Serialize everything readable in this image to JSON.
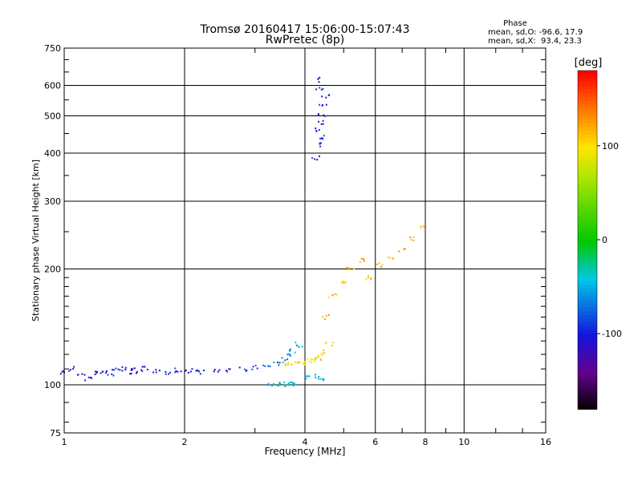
{
  "chart_data": {
    "type": "scatter",
    "title": "Tromsø 20160417 15:06:00-15:07:43",
    "subtitle": "RwPretec (8p)",
    "xlabel": "Frequency [MHz]",
    "ylabel": "Stationary phase Virtual Height [km]",
    "x_scale": "log",
    "y_scale": "log",
    "xlim": [
      1,
      16
    ],
    "ylim": [
      75,
      750
    ],
    "x_ticks": [
      1,
      2,
      4,
      6,
      8,
      10,
      16
    ],
    "x_tick_labels": [
      "1",
      "2",
      "4",
      "6",
      "8",
      "10",
      "16"
    ],
    "y_ticks": [
      75,
      100,
      200,
      300,
      400,
      500,
      600,
      750
    ],
    "y_tick_labels": [
      "75",
      "100",
      "200",
      "300",
      "400",
      "500",
      "600",
      "750"
    ],
    "grid": true,
    "phase_stats": {
      "title": "Phase",
      "line_o": "mean, sd,O: -96.6, 17.9",
      "line_x": "mean, sd,X:  93.4, 23.3"
    },
    "colorbar": {
      "label": "[deg]",
      "range": [
        -180,
        180
      ],
      "ticks": [
        100,
        0,
        -100
      ],
      "tick_labels": [
        "100",
        "0",
        "-100"
      ]
    },
    "series": [
      {
        "x": [
          1.0,
          1.05,
          1.1,
          1.15,
          1.2,
          1.25,
          1.3,
          1.35,
          1.4,
          1.45,
          1.5,
          1.55,
          1.6,
          1.7,
          1.8,
          1.9,
          2.0,
          2.1,
          2.2,
          2.4,
          2.6,
          2.8,
          3.0,
          3.2,
          3.4,
          3.55,
          3.65,
          3.75,
          3.85
        ],
        "y": [
          108,
          110,
          106,
          104,
          107,
          108,
          107,
          109,
          110,
          108,
          109,
          108,
          110,
          109,
          108,
          109,
          108,
          109,
          108,
          108,
          109,
          110,
          111,
          112,
          114,
          116,
          119,
          123,
          127
        ]
      },
      {
        "x": [
          3.55,
          3.7,
          3.85,
          4.0,
          4.1,
          4.2,
          4.3,
          4.4,
          4.5,
          4.6
        ],
        "y": [
          113,
          113,
          114,
          114,
          115,
          116,
          117,
          119,
          122,
          127
        ]
      },
      {
        "x": [
          3.3,
          3.4,
          3.5,
          3.6,
          3.7,
          3.8,
          4.1,
          4.25,
          4.4
        ],
        "y": [
          100,
          100,
          101,
          100,
          101,
          100,
          104,
          105,
          104
        ]
      },
      {
        "x": [
          4.25,
          4.3,
          4.35,
          4.4,
          4.45,
          4.5,
          4.35,
          4.3,
          4.4,
          4.45
        ],
        "y": [
          390,
          420,
          460,
          500,
          530,
          560,
          590,
          620,
          480,
          440
        ]
      },
      {
        "x": [
          4.5,
          4.7,
          5.0,
          5.2,
          5.5,
          5.8,
          6.2,
          6.6,
          7.0,
          7.5,
          7.8
        ],
        "y": [
          150,
          170,
          185,
          200,
          210,
          190,
          205,
          215,
          225,
          240,
          260
        ]
      }
    ]
  }
}
